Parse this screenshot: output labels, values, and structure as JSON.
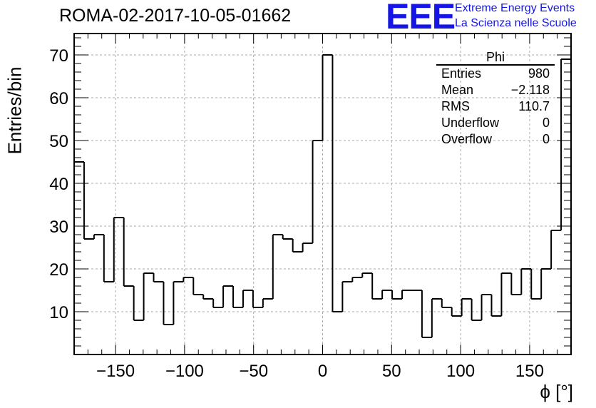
{
  "header": {
    "run_title": "ROMA-02-2017-10-05-01662"
  },
  "logo": {
    "letters": "EEE",
    "line1": "Extreme Energy Events",
    "line2": "La Scienza nelle Scuole"
  },
  "stats_box": {
    "title": "Phi",
    "rows": [
      {
        "key": "Entries",
        "value": "980"
      },
      {
        "key": "Mean",
        "value": "−2.118"
      },
      {
        "key": "RMS",
        "value": "110.7"
      },
      {
        "key": "Underflow",
        "value": "0"
      },
      {
        "key": "Overflow",
        "value": "0"
      }
    ]
  },
  "colors": {
    "histogram": "#000000",
    "grid": "#aaaaaa",
    "logo": "#1515e6"
  },
  "chart_data": {
    "type": "histogram",
    "title": "ROMA-02-2017-10-05-01662",
    "xlabel": "ϕ [°]",
    "ylabel": "Entries/bin",
    "xlim": [
      -180,
      180
    ],
    "ylim": [
      0,
      75
    ],
    "grid": true,
    "bin_width": 7.2,
    "bin_edges_start": -180,
    "x_ticks": [
      -150,
      -100,
      -50,
      0,
      50,
      100,
      150
    ],
    "x_tick_labels": [
      "−150",
      "−100",
      "−50",
      "0",
      "50",
      "100",
      "150"
    ],
    "y_ticks": [
      10,
      20,
      30,
      40,
      50,
      60,
      70
    ],
    "y_tick_labels": [
      "10",
      "20",
      "30",
      "40",
      "50",
      "60",
      "70"
    ],
    "values": [
      45,
      27,
      28,
      17,
      32,
      16,
      8,
      19,
      17,
      7,
      17,
      18,
      14,
      13,
      11,
      16,
      11,
      15,
      11,
      13,
      28,
      27,
      24,
      26,
      50,
      70,
      10,
      17,
      18,
      19,
      13,
      15,
      13,
      15,
      15,
      4,
      13,
      11,
      9,
      13,
      8,
      14,
      9,
      19,
      14,
      20,
      13,
      20,
      29,
      69
    ]
  }
}
